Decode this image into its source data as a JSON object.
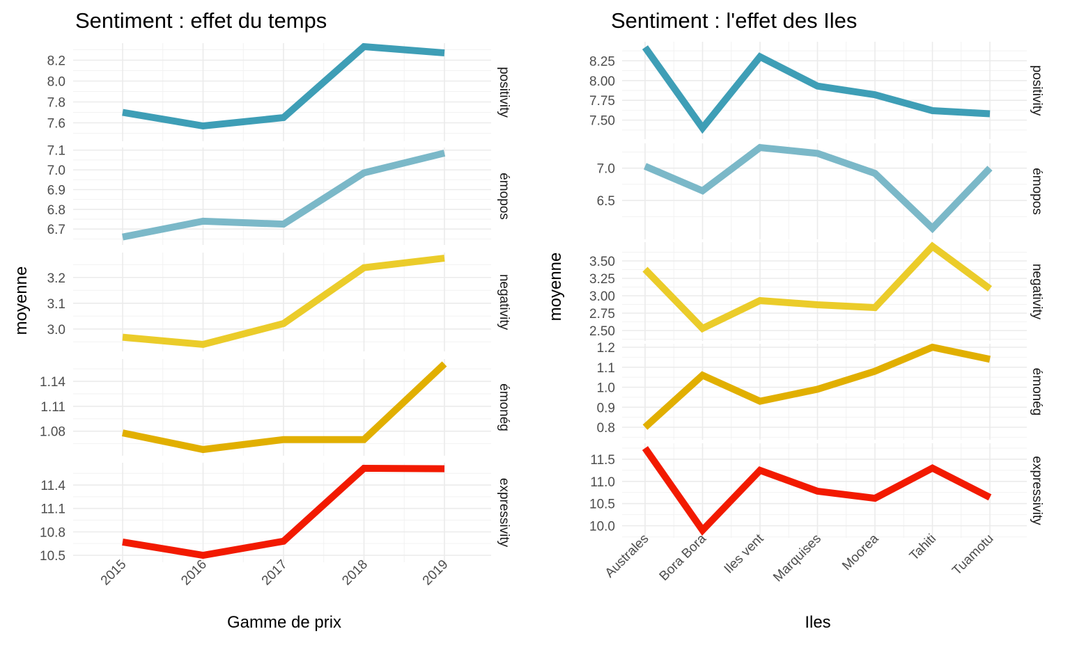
{
  "charts": [
    {
      "title": "Sentiment : effet du temps",
      "xlabel": "Gamme de prix",
      "ylabel": "moyenne"
    },
    {
      "title": "Sentiment : l'effet des Iles",
      "xlabel": "Iles",
      "ylabel": "moyenne"
    }
  ],
  "chart_data": [
    {
      "type": "line",
      "title": "Sentiment : effet du temps",
      "xlabel": "Gamme de prix",
      "ylabel": "moyenne",
      "x": [
        "2015",
        "2016",
        "2017",
        "2018",
        "2019"
      ],
      "x_tick_rotation": "45",
      "grid": true,
      "facets": [
        {
          "label": "positivity",
          "color": "#3e9eb6",
          "ylim": [
            7.51,
            8.33
          ],
          "ticks": [
            7.6,
            7.8,
            8.0,
            8.2
          ],
          "tick_labels": [
            "7.6",
            "7.8",
            "8.0",
            "8.2"
          ],
          "values": [
            7.7,
            7.57,
            7.65,
            8.33,
            8.27
          ]
        },
        {
          "label": "émopos",
          "color": "#7bb8c8",
          "ylim": [
            6.655,
            7.085
          ],
          "ticks": [
            6.7,
            6.8,
            6.9,
            7.0,
            7.1
          ],
          "tick_labels": [
            "6.7",
            "6.8",
            "6.9",
            "7.0",
            "7.1"
          ],
          "values": [
            6.66,
            6.74,
            6.725,
            6.985,
            7.085
          ]
        },
        {
          "label": "negativity",
          "color": "#ebcc2a",
          "ylim": [
            2.94,
            3.275
          ],
          "ticks": [
            3.0,
            3.1,
            3.2
          ],
          "tick_labels": [
            "3.0",
            "3.1",
            "3.2"
          ],
          "values": [
            2.968,
            2.94,
            3.021,
            3.238,
            3.275
          ]
        },
        {
          "label": "émonég",
          "color": "#e1af00",
          "ylim": [
            1.058,
            1.161
          ],
          "ticks": [
            1.08,
            1.11,
            1.14
          ],
          "tick_labels": [
            "1.08",
            "1.11",
            "1.14"
          ],
          "values": [
            1.078,
            1.058,
            1.07,
            1.07,
            1.161
          ]
        },
        {
          "label": "expressivity",
          "color": "#f21a00",
          "ylim": [
            10.5,
            11.615
          ],
          "ticks": [
            10.5,
            10.8,
            11.1,
            11.4
          ],
          "tick_labels": [
            "10.5",
            "10.8",
            "11.1",
            "11.4"
          ],
          "values": [
            10.67,
            10.5,
            10.68,
            11.615,
            11.61
          ]
        }
      ]
    },
    {
      "type": "line",
      "title": "Sentiment : l'effet des Iles",
      "xlabel": "Iles",
      "ylabel": "moyenne",
      "x": [
        "Australes",
        "Bora Bora",
        "Iles vent",
        "Marquises",
        "Moorea",
        "Tahiti",
        "Tuamotu"
      ],
      "x_tick_rotation": "45",
      "grid": true,
      "facets": [
        {
          "label": "positivity",
          "color": "#3e9eb6",
          "ylim": [
            7.4,
            8.42
          ],
          "ticks": [
            7.5,
            7.75,
            8.0,
            8.25
          ],
          "tick_labels": [
            "7.50",
            "7.75",
            "8.00",
            "8.25"
          ],
          "values": [
            8.42,
            7.4,
            8.3,
            7.93,
            7.82,
            7.62,
            7.58
          ]
        },
        {
          "label": "émopos",
          "color": "#7bb8c8",
          "ylim": [
            6.07,
            7.32
          ],
          "ticks": [
            6.5,
            7.0
          ],
          "tick_labels": [
            "6.5",
            "7.0"
          ],
          "values": [
            7.03,
            6.65,
            7.32,
            7.23,
            6.92,
            6.07,
            7.0
          ]
        },
        {
          "label": "negativity",
          "color": "#ebcc2a",
          "ylim": [
            2.53,
            3.71
          ],
          "ticks": [
            2.5,
            2.75,
            3.0,
            3.25,
            3.5
          ],
          "tick_labels": [
            "2.50",
            "2.75",
            "3.00",
            "3.25",
            "3.50"
          ],
          "values": [
            3.38,
            2.53,
            2.93,
            2.87,
            2.83,
            3.71,
            3.1
          ]
        },
        {
          "label": "émonég",
          "color": "#e1af00",
          "ylim": [
            0.8,
            1.2
          ],
          "ticks": [
            0.8,
            0.9,
            1.0,
            1.1,
            1.2
          ],
          "tick_labels": [
            "0.8",
            "0.9",
            "1.0",
            "1.1",
            "1.2"
          ],
          "values": [
            0.8,
            1.06,
            0.93,
            0.99,
            1.08,
            1.2,
            1.14
          ]
        },
        {
          "label": "expressivity",
          "color": "#f21a00",
          "ylim": [
            9.9,
            11.75
          ],
          "ticks": [
            10.0,
            10.5,
            11.0,
            11.5
          ],
          "tick_labels": [
            "10.0",
            "10.5",
            "11.0",
            "11.5"
          ],
          "values": [
            11.75,
            9.9,
            11.25,
            10.78,
            10.62,
            11.3,
            10.64
          ]
        }
      ]
    }
  ]
}
